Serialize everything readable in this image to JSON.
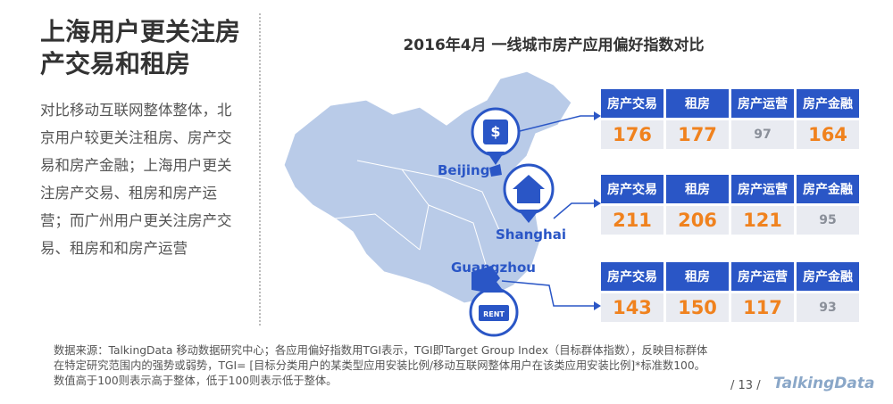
{
  "slide": {
    "title_lines": [
      "上海用户更关注房",
      "产交易和租房"
    ],
    "description": "对比移动互联网整体整体，北京用户较更关注租房、房产交易和房产金融；上海用户更关注房产交易、租房和房产运营；而广州用户更关注房产交易、租房和和房产运营",
    "chart_title": "2016年4月 一线城市房产应用偏好指数对比",
    "map_labels": [
      "Beijing",
      "Shanghai",
      "Guangzhou"
    ],
    "icon_label": "RENT",
    "tables": [
      {
        "headers": [
          "房产交易",
          "租房",
          "房产运营",
          "房产金融"
        ],
        "values": [
          176,
          177,
          97,
          164
        ],
        "value_colors": [
          "#f0821e",
          "#f0821e",
          "#8a8f99",
          "#f0821e"
        ]
      },
      {
        "headers": [
          "房产交易",
          "租房",
          "房产运营",
          "房产金融"
        ],
        "values": [
          211,
          206,
          121,
          95
        ],
        "value_colors": [
          "#f0821e",
          "#f0821e",
          "#f0821e",
          "#8a8f99"
        ]
      },
      {
        "headers": [
          "房产交易",
          "租房",
          "房产运营",
          "房产金融"
        ],
        "values": [
          143,
          150,
          117,
          93
        ],
        "value_colors": [
          "#f0821e",
          "#f0821e",
          "#f0821e",
          "#8a8f99"
        ]
      }
    ],
    "source": "数据来源：TalkingData 移动数据研究中心；各应用偏好指数用TGI表示，TGI即Target Group Index（目标群体指数），反映目标群体在特定研究范围内的强势或弱势，TGI= [目标分类用户的某类型应用安装比例/移动互联网整体用户在该类应用安装比例]*标准数100。数值高于100则表示高于整体，低于100则表示低于整体。",
    "page_number": "13",
    "logo": "TalkingData"
  }
}
